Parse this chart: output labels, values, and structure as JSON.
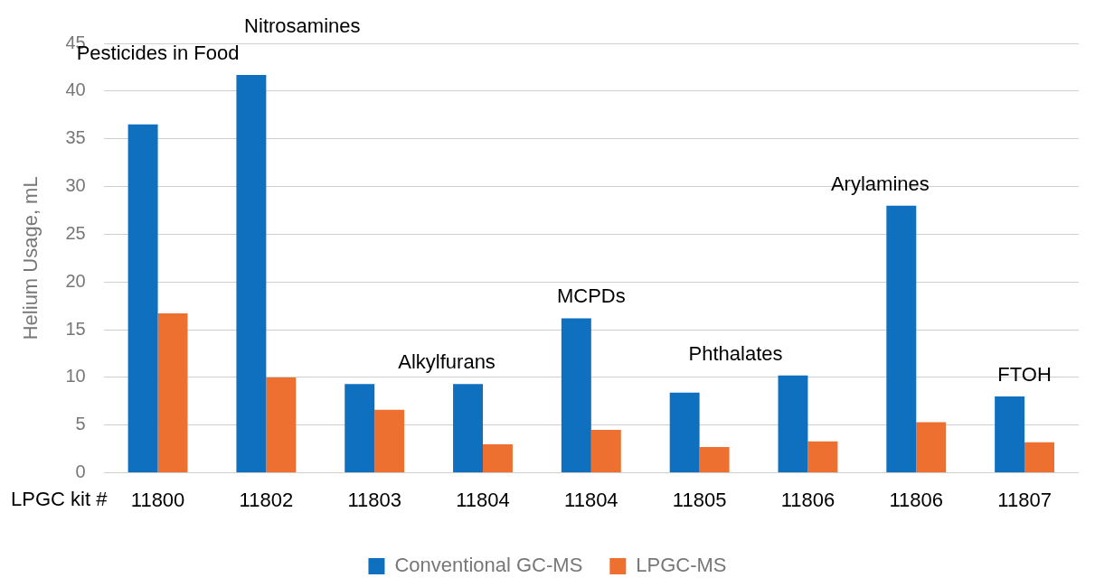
{
  "chart_data": {
    "type": "bar",
    "xlabel": "LPGC kit #",
    "ylabel": "Helium Usage, mL",
    "categories": [
      "11800",
      "11802",
      "11803",
      "11804",
      "11804",
      "11805",
      "11806",
      "11806",
      "11807"
    ],
    "series": [
      {
        "name": "Conventional GC-MS",
        "color": "#1070c0",
        "values": [
          36.5,
          41.7,
          9.3,
          9.3,
          16.2,
          8.4,
          10.2,
          28,
          8.0
        ]
      },
      {
        "name": "LPGC-MS",
        "color": "#ed7030",
        "values": [
          16.7,
          10,
          6.6,
          3.0,
          4.5,
          2.7,
          3.3,
          5.3,
          3.2
        ]
      }
    ],
    "ylim": [
      0,
      45
    ],
    "yticks": [
      0,
      5,
      10,
      15,
      20,
      25,
      30,
      35,
      40,
      45
    ],
    "grid": "y",
    "legend": "bottom",
    "annotations": [
      "Pesticides in Food",
      "Nitrosamines",
      "Alkylfurans",
      "MCPDs",
      "Phthalates",
      "Arylamines",
      "FTOH"
    ]
  }
}
